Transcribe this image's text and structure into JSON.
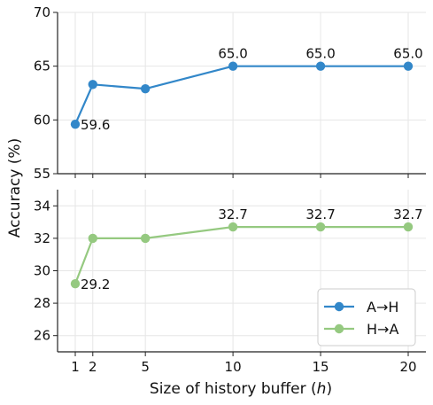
{
  "chart_data": [
    {
      "type": "line",
      "panel": "top",
      "x": [
        1,
        2,
        5,
        10,
        15,
        20
      ],
      "series": [
        {
          "name": "A→H",
          "values": [
            59.6,
            63.3,
            62.9,
            65.0,
            65.0,
            65.0
          ],
          "color": "#3287c9"
        }
      ],
      "data_labels": [
        {
          "x": 1,
          "text": "59.6",
          "pos": "right"
        },
        {
          "x": 10,
          "text": "65.0",
          "pos": "above"
        },
        {
          "x": 15,
          "text": "65.0",
          "pos": "above"
        },
        {
          "x": 20,
          "text": "65.0",
          "pos": "above"
        }
      ],
      "ylim": [
        55,
        70
      ],
      "yticks": [
        "55",
        "60",
        "65",
        "70"
      ],
      "grid": true
    },
    {
      "type": "line",
      "panel": "bottom",
      "x": [
        1,
        2,
        5,
        10,
        15,
        20
      ],
      "series": [
        {
          "name": "H→A",
          "values": [
            29.2,
            32.0,
            32.0,
            32.7,
            32.7,
            32.7
          ],
          "color": "#95c980"
        }
      ],
      "data_labels": [
        {
          "x": 1,
          "text": "29.2",
          "pos": "right"
        },
        {
          "x": 10,
          "text": "32.7",
          "pos": "above"
        },
        {
          "x": 15,
          "text": "32.7",
          "pos": "above"
        },
        {
          "x": 20,
          "text": "32.7",
          "pos": "above"
        }
      ],
      "ylim": [
        25,
        35
      ],
      "yticks": [
        "26",
        "28",
        "30",
        "32",
        "34"
      ],
      "grid": true
    }
  ],
  "axes": {
    "xlabel": "Size of history buffer (",
    "xlabel_var": "h",
    "xlabel_close": ")",
    "ylabel": "Accuracy (%)",
    "xticks": [
      "1",
      "2",
      "5",
      "10",
      "15",
      "20"
    ]
  },
  "legend": {
    "placement": "bottom-right",
    "items": [
      "A→H",
      "H→A"
    ]
  }
}
